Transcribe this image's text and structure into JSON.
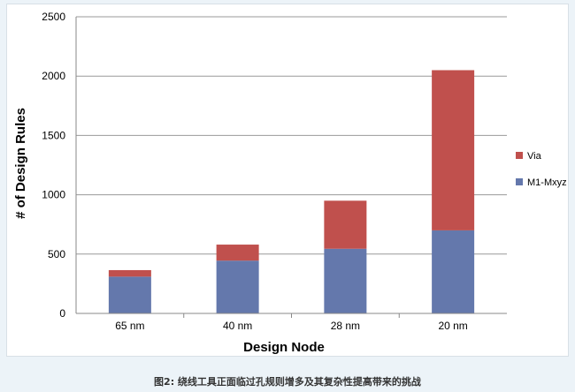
{
  "chart_data": {
    "type": "bar",
    "stacked": true,
    "categories": [
      "65 nm",
      "40 nm",
      "28 nm",
      "20 nm"
    ],
    "series": [
      {
        "name": "M1-Mxyz",
        "values": [
          310,
          445,
          545,
          700
        ],
        "color": "#6478ac"
      },
      {
        "name": "Via",
        "values": [
          55,
          135,
          405,
          1350
        ],
        "color": "#c0504d"
      }
    ],
    "xlabel": "Design Node",
    "ylabel": "# of Design Rules",
    "ylim": [
      0,
      2500
    ],
    "yticks": [
      0,
      500,
      1000,
      1500,
      2000,
      2500
    ],
    "grid": true,
    "legend_position": "right",
    "legend_order": [
      "Via",
      "M1-Mxyz"
    ]
  },
  "caption": "图2: 绕线工具正面临过孔规则增多及其复杂性提高带来的挑战"
}
